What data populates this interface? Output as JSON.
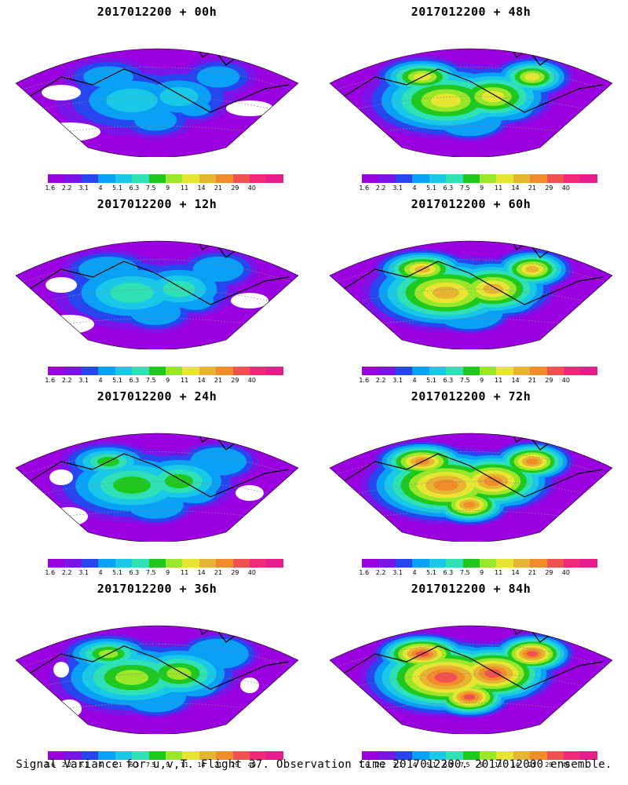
{
  "panels": [
    {
      "id": "p00",
      "title": "2017012200 + 00h",
      "lead_hours": 0
    },
    {
      "id": "p48",
      "title": "2017012200 + 48h",
      "lead_hours": 48
    },
    {
      "id": "p12",
      "title": "2017012200 + 12h",
      "lead_hours": 12
    },
    {
      "id": "p60",
      "title": "2017012200 + 60h",
      "lead_hours": 60
    },
    {
      "id": "p24",
      "title": "2017012200 + 24h",
      "lead_hours": 24
    },
    {
      "id": "p72",
      "title": "2017012200 + 72h",
      "lead_hours": 72
    },
    {
      "id": "p36",
      "title": "2017012200 + 36h",
      "lead_hours": 36
    },
    {
      "id": "p84",
      "title": "2017012200 + 84h",
      "lead_hours": 84
    }
  ],
  "colorbar": {
    "labels": [
      "1.6",
      "2.2",
      "3.1",
      "4",
      "5.1",
      "6.3",
      "7.5",
      "9",
      "11",
      "14",
      "21",
      "29",
      "40"
    ],
    "colors": [
      "#9a00e0",
      "#7a14e8",
      "#2846f0",
      "#0aa0f5",
      "#18c8e6",
      "#2ee0b4",
      "#1ec81e",
      "#9ae62a",
      "#e6e632",
      "#e6b432",
      "#f08c2a",
      "#f05050",
      "#f0287a",
      "#e61e8c"
    ]
  },
  "footer": "Signal Variance for u,v,T. Flight 37. Observation time 2017012200. 2017012000 ensemble."
}
